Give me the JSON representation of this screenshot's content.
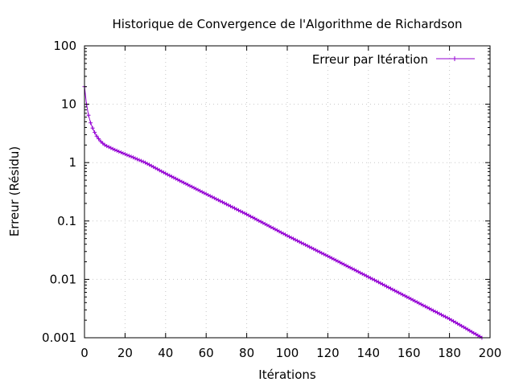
{
  "chart_data": {
    "type": "line",
    "title": "Historique de Convergence de l'Algorithme de Richardson",
    "xlabel": "Itérations",
    "ylabel": "Erreur (Résidu)",
    "xlim": [
      0,
      200
    ],
    "ylim": [
      0.001,
      100
    ],
    "yscale": "log",
    "grid": true,
    "legend_position": "top-right",
    "x_ticks": [
      0,
      20,
      40,
      60,
      80,
      100,
      120,
      140,
      160,
      180,
      200
    ],
    "x_tick_labels": [
      "0",
      "20",
      "40",
      "60",
      "80",
      "100",
      "120",
      "140",
      "160",
      "180",
      "200"
    ],
    "y_ticks": [
      0.001,
      0.01,
      0.1,
      1,
      10,
      100
    ],
    "y_tick_labels": [
      "0.001",
      "0.01",
      "0.1",
      "1",
      "10",
      "100"
    ],
    "series": [
      {
        "name": "Erreur par Itération",
        "color": "#9400d3",
        "marker": "plus",
        "x": [
          0,
          1,
          2,
          3,
          4,
          5,
          6,
          8,
          10,
          15,
          20,
          30,
          40,
          60,
          80,
          100,
          120,
          140,
          160,
          180,
          196
        ],
        "y": [
          20,
          10,
          6.5,
          4.8,
          3.9,
          3.3,
          2.85,
          2.3,
          2.0,
          1.65,
          1.4,
          1.0,
          0.65,
          0.29,
          0.13,
          0.056,
          0.025,
          0.011,
          0.0048,
          0.0021,
          0.001
        ]
      }
    ]
  }
}
